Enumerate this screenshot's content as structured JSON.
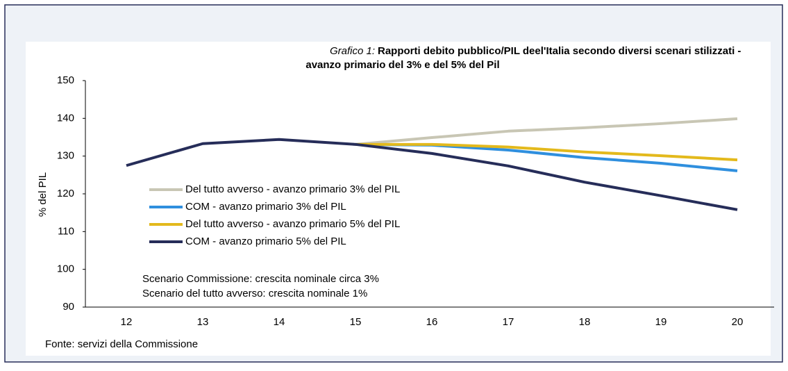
{
  "chart_data": {
    "type": "line",
    "title_label": "Grafico 1:",
    "title": [
      "Rapporti debito pubblico/PIL deel'Italia secondo diversi scenari stilizzati -",
      "avanzo primario del 3% e del 5% del Pil"
    ],
    "y_label": "% del PIL",
    "categories": [
      "12",
      "13",
      "14",
      "15",
      "16",
      "17",
      "18",
      "19",
      "20"
    ],
    "series": [
      {
        "name": "Del tutto avverso - avanzo primario 3% del PIL",
        "color": "#c8c6b4",
        "values": [
          null,
          null,
          null,
          133.1,
          134.9,
          136.6,
          137.5,
          138.6,
          139.9
        ]
      },
      {
        "name": "COM - avanzo primario 3% del PIL",
        "color": "#2f8fde",
        "values": [
          null,
          null,
          null,
          133.1,
          132.9,
          131.6,
          129.6,
          128.1,
          126.1
        ]
      },
      {
        "name": "Del tutto avverso - avanzo primario 5% del PIL",
        "color": "#e3b91c",
        "values": [
          null,
          null,
          null,
          133.1,
          133.1,
          132.4,
          131.1,
          130.1,
          129.0
        ]
      },
      {
        "name": "COM - avanzo primario 5% del PIL",
        "color": "#262d59",
        "values": [
          127.5,
          133.3,
          134.4,
          133.1,
          130.7,
          127.4,
          123.1,
          119.5,
          115.8
        ]
      }
    ],
    "ylim": [
      90,
      150
    ],
    "yticks": [
      90,
      100,
      110,
      120,
      130,
      140,
      150
    ],
    "notes": [
      "Scenario Commissione: crescita nominale circa 3%",
      "Scenario del tutto avverso: crescita nominale 1%"
    ],
    "source": "Fonte: servizi della Commissione"
  }
}
